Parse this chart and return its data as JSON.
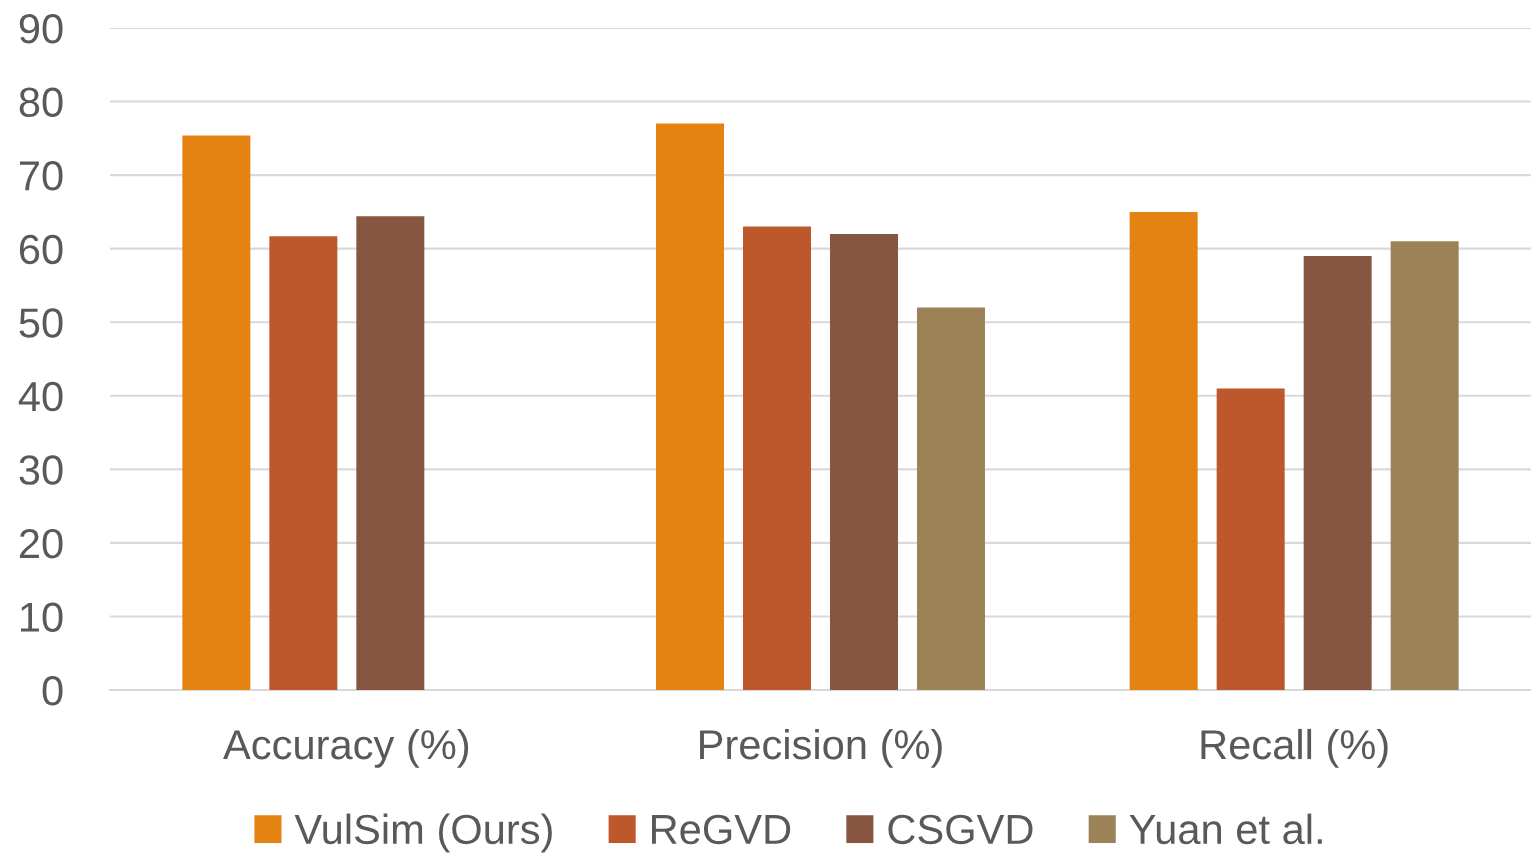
{
  "chart_data": {
    "type": "bar",
    "categories": [
      "Accuracy (%)",
      "Precision (%)",
      "Recall (%)"
    ],
    "series": [
      {
        "name": "VulSim (Ours)",
        "color": "#e48312",
        "values": [
          75.4,
          77.0,
          65.0
        ]
      },
      {
        "name": "ReGVD",
        "color": "#bd582c",
        "values": [
          61.7,
          63.0,
          41.0
        ]
      },
      {
        "name": "CSGVD",
        "color": "#865640",
        "values": [
          64.4,
          62.0,
          59.0
        ]
      },
      {
        "name": "Yuan et al.",
        "color": "#9b8357",
        "values": [
          null,
          52.0,
          61.0
        ]
      }
    ],
    "ylim": [
      0,
      90
    ],
    "yticks": [
      0,
      10,
      20,
      30,
      40,
      50,
      60,
      70,
      80,
      90
    ],
    "grid": "y",
    "legend": "bottom"
  }
}
